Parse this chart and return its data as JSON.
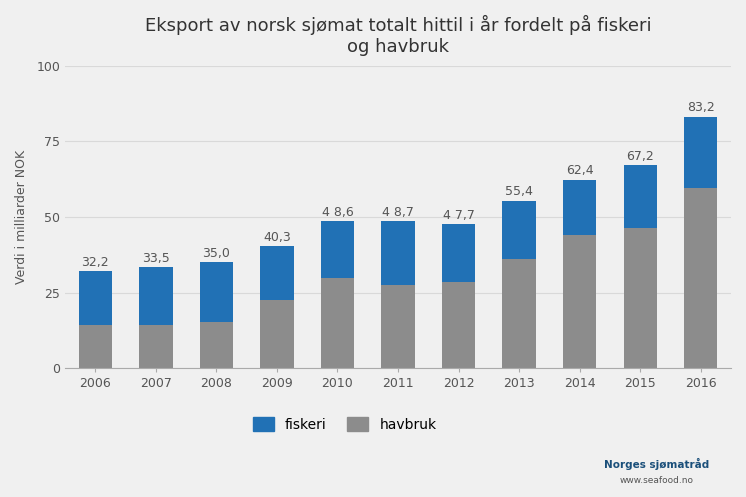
{
  "title": "Eksport av norsk sjømat totalt hittil i år fordelt på fiskeri\nog havbruk",
  "ylabel": "Verdi i milliarder NOK",
  "years": [
    2006,
    2007,
    2008,
    2009,
    2010,
    2011,
    2012,
    2013,
    2014,
    2015,
    2016
  ],
  "totals": [
    32.2,
    33.5,
    35.0,
    40.3,
    48.6,
    48.7,
    47.7,
    55.4,
    62.4,
    67.2,
    83.2
  ],
  "havbruk": [
    14.5,
    14.5,
    15.5,
    22.5,
    30.0,
    27.5,
    28.5,
    36.0,
    44.0,
    46.5,
    59.5
  ],
  "fiskeri_color": "#2171b5",
  "havbruk_color": "#8c8c8c",
  "background_color": "#f0f0f0",
  "ylim": [
    0,
    100
  ],
  "yticks": [
    0,
    25,
    50,
    75,
    100
  ],
  "legend_fiskeri": "fiskeri",
  "legend_havbruk": "havbruk",
  "total_label_fontsize": 9,
  "bar_width": 0.55,
  "grid_color": "#d9d9d9",
  "title_fontsize": 13,
  "ylabel_fontsize": 9,
  "tick_fontsize": 9,
  "legend_fontsize": 10,
  "watermark_text1": "Norges sjømatråd",
  "watermark_text2": "www.seafood.no"
}
